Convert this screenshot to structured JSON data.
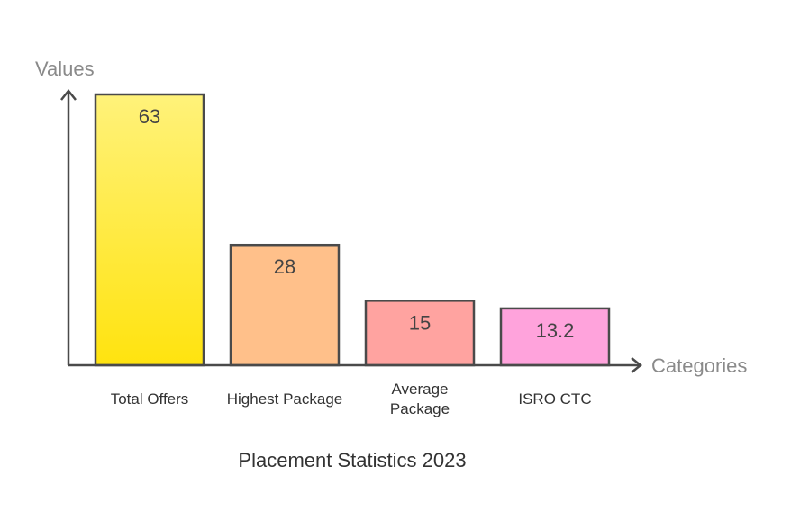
{
  "chart_data": {
    "type": "bar",
    "title": "Placement Statistics 2023",
    "xlabel": "Categories",
    "ylabel": "Values",
    "categories": [
      "Total Offers",
      "Highest Package",
      "Average Package",
      "ISRO CTC"
    ],
    "category_lines": [
      [
        "Total Offers"
      ],
      [
        "Highest Package"
      ],
      [
        "Average",
        "Package"
      ],
      [
        "ISRO CTC"
      ]
    ],
    "values": [
      63,
      28,
      15,
      13.2
    ],
    "data_labels": [
      "63",
      "28",
      "15",
      "13.2"
    ],
    "ylim": [
      0,
      63
    ],
    "grid": false,
    "colors": [
      [
        "#fff27a",
        "#ffe30f"
      ],
      [
        "#ffc08a",
        "#ffc08a"
      ],
      [
        "#ffa3a0",
        "#ffa3a0"
      ],
      [
        "#ffa3dc",
        "#ffa3dc"
      ]
    ],
    "stroke_color": "#4a4a4a",
    "axis_label_color": "#8a8a8a"
  }
}
